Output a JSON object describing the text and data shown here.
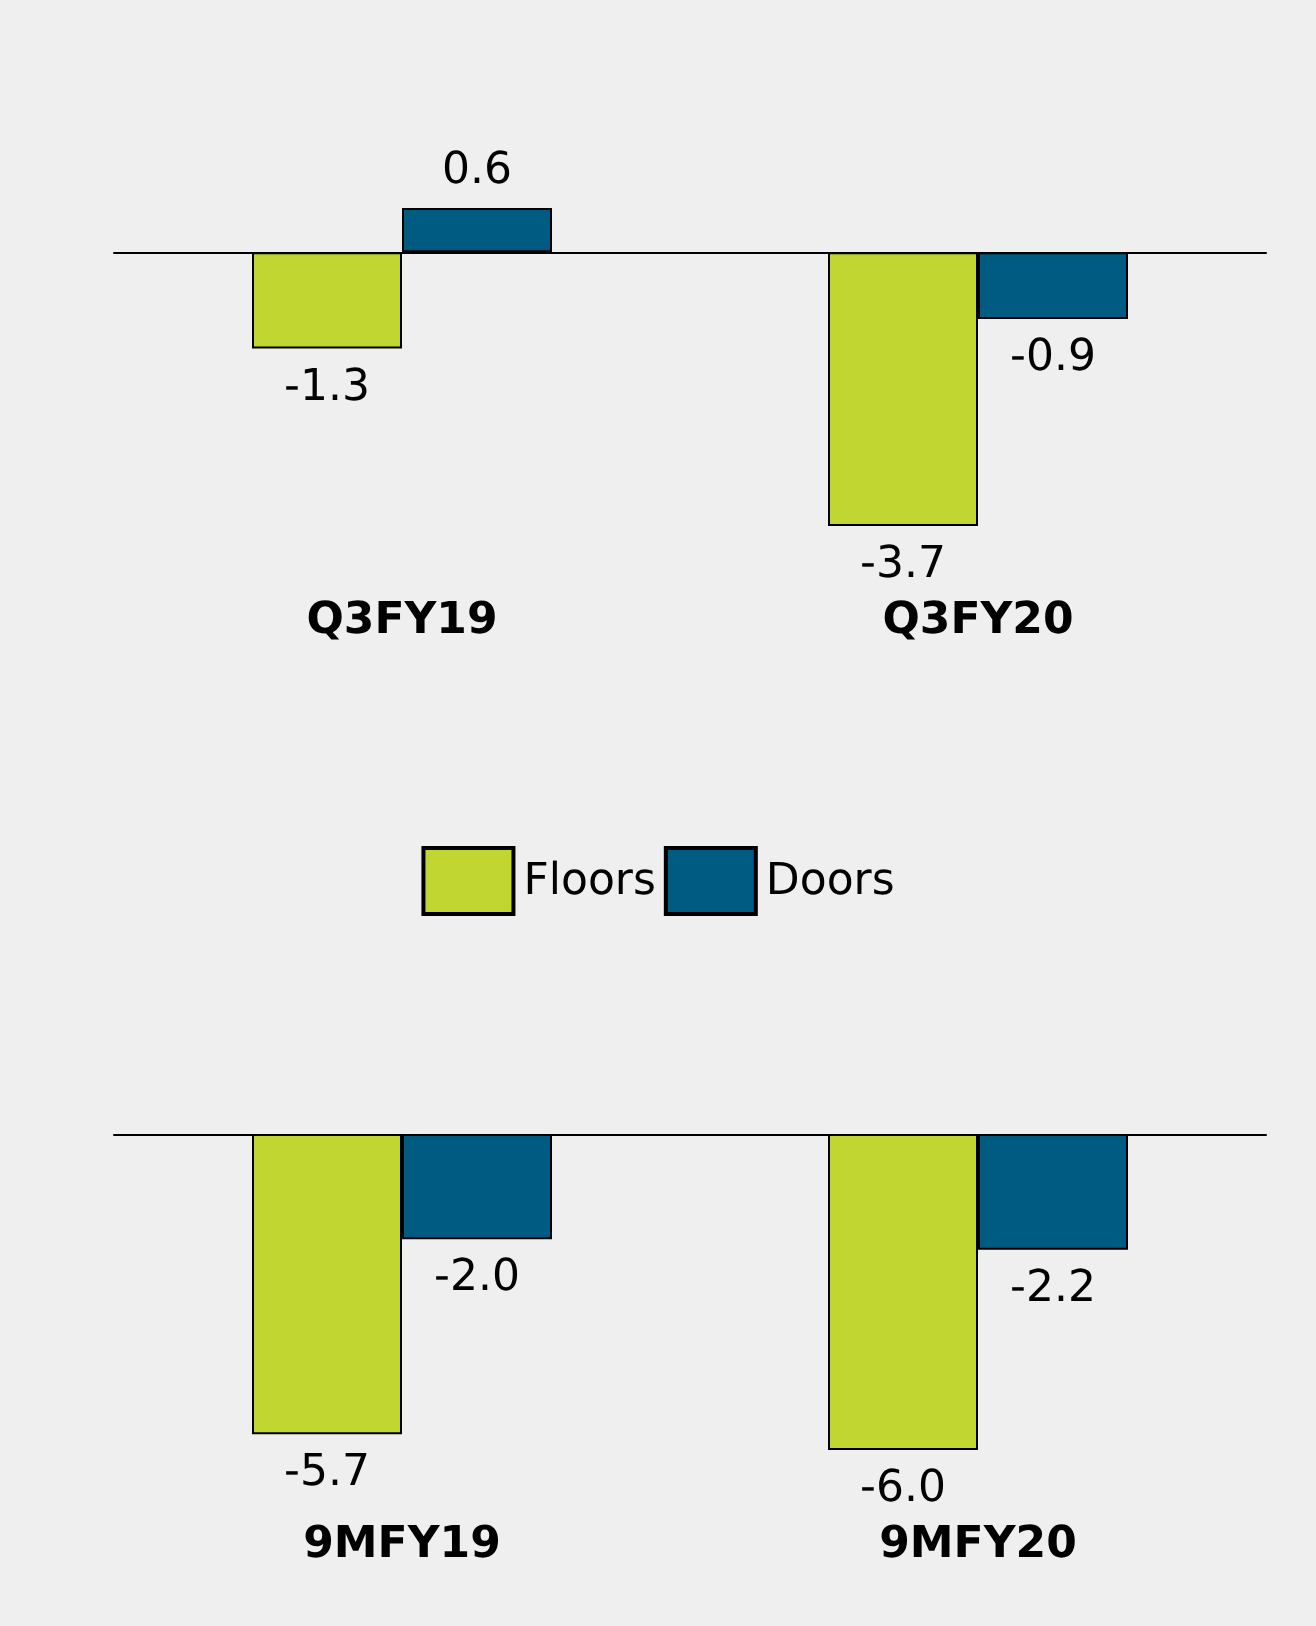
{
  "chart_data": [
    {
      "type": "bar",
      "categories": [
        "Q3FY19",
        "Q3FY20"
      ],
      "series": [
        {
          "name": "Floors",
          "color": "#c1d631",
          "values": [
            -1.3,
            -3.7
          ],
          "value_labels": [
            "-1.3",
            "-3.7"
          ]
        },
        {
          "name": "Doors",
          "color": "#005b82",
          "values": [
            0.6,
            -0.9
          ],
          "value_labels": [
            "0.6",
            "-0.9"
          ]
        }
      ],
      "legend": "bottom"
    },
    {
      "type": "bar",
      "categories": [
        "9MFY19",
        "9MFY20"
      ],
      "series": [
        {
          "color": "#c1d631",
          "values": [
            -5.7,
            -6.0
          ],
          "value_labels": [
            "-5.7",
            "-6.0"
          ]
        },
        {
          "color": "#005b82",
          "values": [
            -2.0,
            -2.2
          ],
          "value_labels": [
            "-2.0",
            "-2.2"
          ]
        }
      ]
    }
  ]
}
